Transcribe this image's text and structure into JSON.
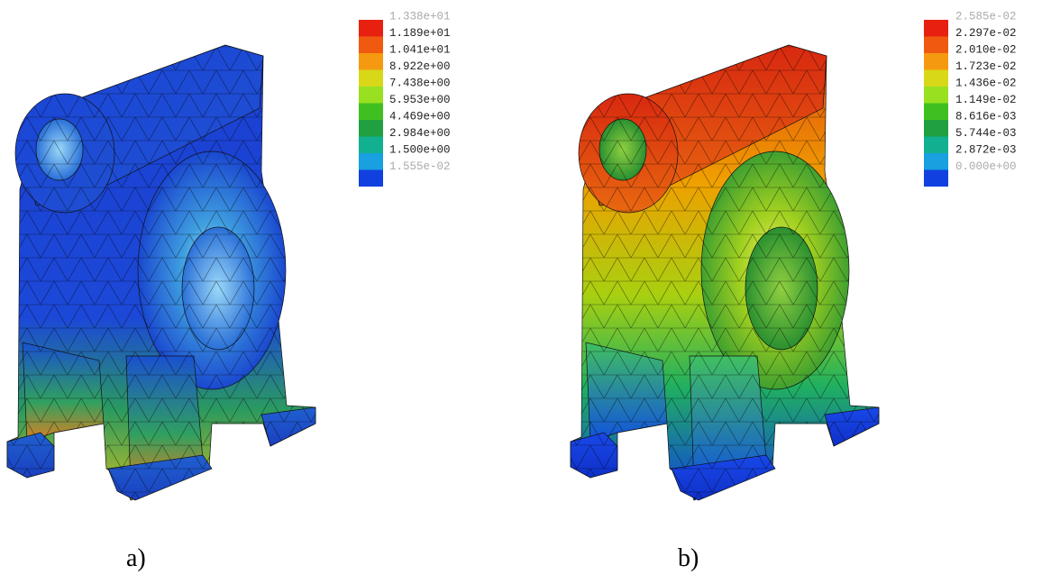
{
  "panels": [
    {
      "legend": {
        "labels": [
          "1.338e+01",
          "1.189e+01",
          "1.041e+01",
          "8.922e+00",
          "7.438e+00",
          "5.953e+00",
          "4.469e+00",
          "2.984e+00",
          "1.500e+00",
          "1.555e-02"
        ]
      },
      "caption": "a)"
    },
    {
      "legend": {
        "labels": [
          "2.585e-02",
          "2.297e-02",
          "2.010e-02",
          "1.723e-02",
          "1.436e-02",
          "1.149e-02",
          "8.616e-03",
          "5.744e-03",
          "2.872e-03",
          "0.000e+00"
        ]
      },
      "caption": "b)"
    }
  ]
}
